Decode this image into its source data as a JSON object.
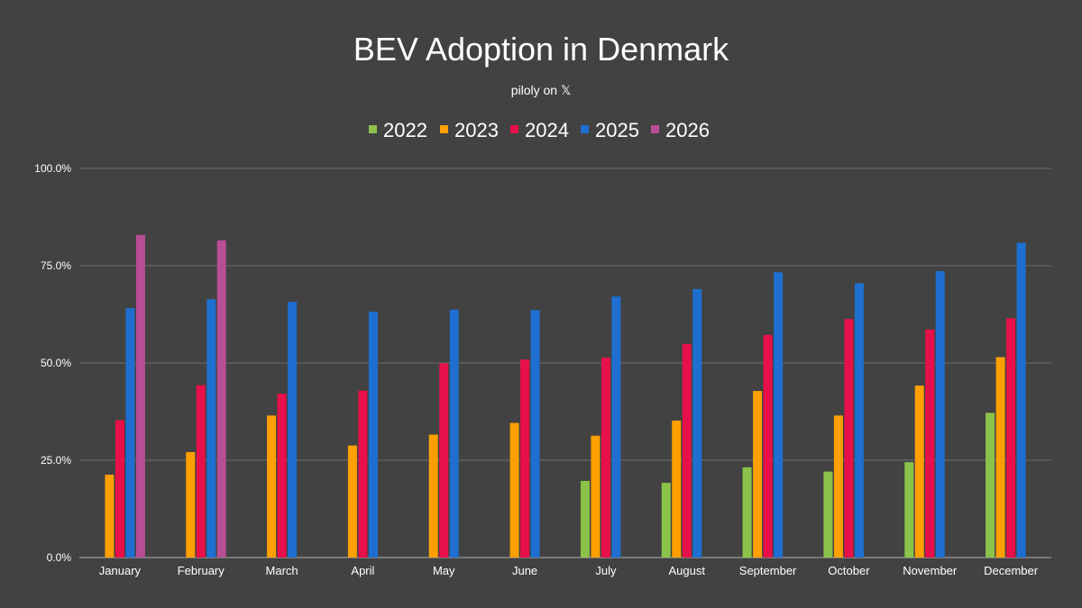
{
  "chart_data": {
    "type": "bar",
    "title": "BEV Adoption in Denmark",
    "subtitle": "piloly on 𝕏",
    "xlabel": "",
    "ylabel": "",
    "ylim": [
      0,
      100
    ],
    "y_ticks": [
      0,
      25,
      50,
      75,
      100
    ],
    "y_tick_labels": [
      "0.0%",
      "25.0%",
      "50.0%",
      "75.0%",
      "100.0%"
    ],
    "grid": true,
    "legend_position": "top-center",
    "categories": [
      "January",
      "February",
      "March",
      "April",
      "May",
      "June",
      "July",
      "August",
      "September",
      "October",
      "November",
      "December"
    ],
    "series": [
      {
        "name": "2022",
        "color": "#8bc34a",
        "values": [
          null,
          null,
          null,
          null,
          null,
          null,
          19.7,
          19.2,
          23.2,
          22.1,
          24.5,
          37.2
        ]
      },
      {
        "name": "2023",
        "color": "#ffa000",
        "values": [
          21.3,
          27.1,
          36.5,
          28.8,
          31.6,
          34.6,
          31.3,
          35.2,
          42.8,
          36.5,
          44.2,
          51.5
        ]
      },
      {
        "name": "2024",
        "color": "#e8104a",
        "values": [
          35.3,
          44.3,
          42.1,
          42.9,
          49.9,
          50.9,
          51.4,
          54.9,
          57.2,
          61.3,
          58.6,
          61.5
        ]
      },
      {
        "name": "2025",
        "color": "#1e6fd0",
        "values": [
          64.1,
          66.4,
          65.7,
          63.2,
          63.7,
          63.6,
          67.1,
          69.0,
          73.3,
          70.5,
          73.6,
          80.9
        ]
      },
      {
        "name": "2026",
        "color": "#b84e94",
        "values": [
          82.9,
          81.5,
          null,
          null,
          null,
          null,
          null,
          null,
          null,
          null,
          null,
          null
        ]
      }
    ]
  }
}
